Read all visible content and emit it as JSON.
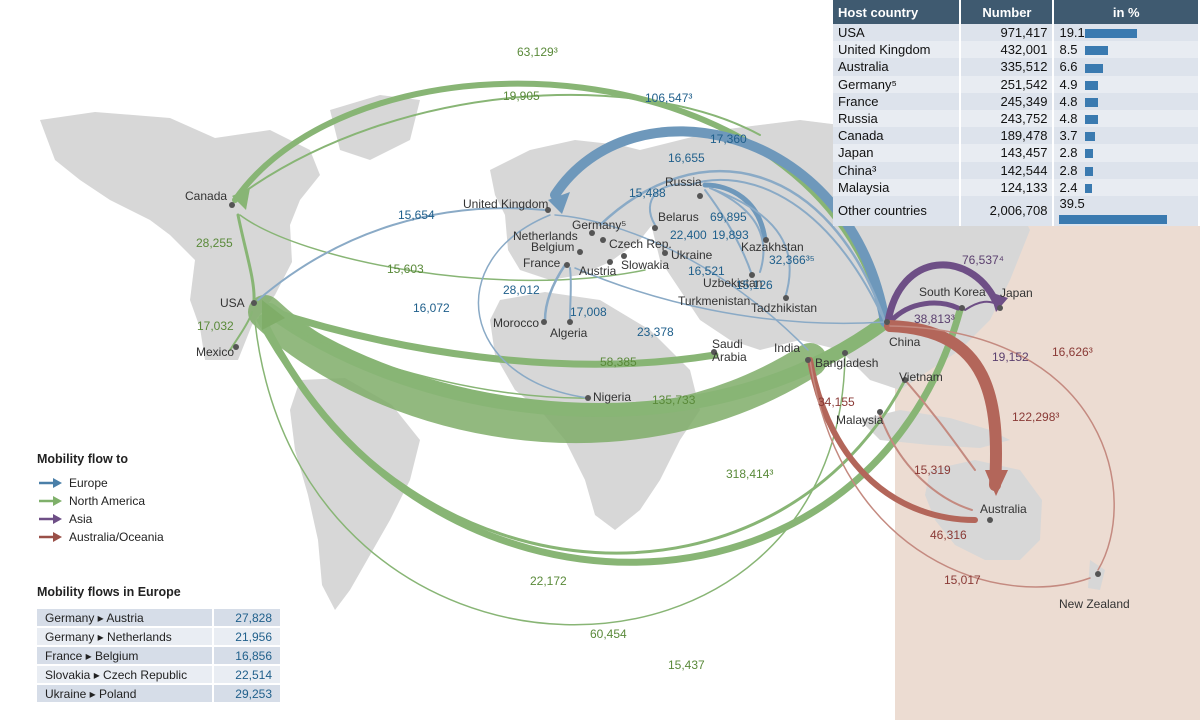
{
  "host_table": {
    "headers": [
      "Host country",
      "Number",
      "in %"
    ],
    "rows": [
      {
        "country": "USA",
        "number": "971,417",
        "pct": "19.1",
        "share": 19.1
      },
      {
        "country": "United Kingdom",
        "number": "432,001",
        "pct": "8.5",
        "share": 8.5
      },
      {
        "country": "Australia",
        "number": "335,512",
        "pct": "6.6",
        "share": 6.6
      },
      {
        "country": "Germany⁵",
        "number": "251,542",
        "pct": "4.9",
        "share": 4.9
      },
      {
        "country": "France",
        "number": "245,349",
        "pct": "4.8",
        "share": 4.8
      },
      {
        "country": "Russia",
        "number": "243,752",
        "pct": "4.8",
        "share": 4.8
      },
      {
        "country": "Canada",
        "number": "189,478",
        "pct": "3.7",
        "share": 3.7
      },
      {
        "country": "Japan",
        "number": "143,457",
        "pct": "2.8",
        "share": 2.8
      },
      {
        "country": "China³",
        "number": "142,544",
        "pct": "2.8",
        "share": 2.8
      },
      {
        "country": "Malaysia",
        "number": "124,133",
        "pct": "2.4",
        "share": 2.4
      },
      {
        "country": "Other countries",
        "number": "2,006,708",
        "pct": "39.5",
        "share": 39.5
      }
    ]
  },
  "legend": {
    "title": "Mobility flow to",
    "items": [
      {
        "label": "Europe",
        "color": "#4a7fa8"
      },
      {
        "label": "North America",
        "color": "#7fb06a"
      },
      {
        "label": "Asia",
        "color": "#6e4f86"
      },
      {
        "label": "Australia/Oceania",
        "color": "#9a5048"
      }
    ]
  },
  "europe_flows": {
    "title": "Mobility flows in Europe",
    "rows": [
      {
        "route": "Germany ▸ Austria",
        "value": "27,828"
      },
      {
        "route": "Germany ▸ Netherlands",
        "value": "21,956"
      },
      {
        "route": "France ▸ Belgium",
        "value": "16,856"
      },
      {
        "route": "Slovakia ▸ Czech Republic",
        "value": "22,514"
      },
      {
        "route": "Ukraine ▸ Poland",
        "value": "29,253"
      }
    ]
  },
  "countries": {
    "canada": "Canada",
    "usa": "USA",
    "mexico": "Mexico",
    "uk": "United Kingdom",
    "netherlands": "Netherlands",
    "belgium": "Belgium",
    "france": "France",
    "germany": "Germany⁵",
    "czech": "Czech Rep.",
    "austria": "Austria",
    "slovakia": "Slowakia",
    "ukraine": "Ukraine",
    "belarus": "Belarus",
    "russia": "Russia",
    "kazakhstan": "Kazakhstan",
    "uzbekistan": "Uzbekistan",
    "turkmenistan": "Turkmenistan",
    "tajikistan": "Tadzhikistan",
    "morocco": "Morocco",
    "algeria": "Algeria",
    "nigeria": "Nigeria",
    "saudi1": "Saudi",
    "saudi2": "Arabia",
    "india": "India",
    "bangladesh": "Bangladesh",
    "china": "China",
    "south_korea": "South Korea",
    "japan": "Japan",
    "vietnam": "Vietnam",
    "malaysia": "Malaysia",
    "australia": "Australia",
    "new_zealand": "New Zealand"
  },
  "flow_values": {
    "china_canada": "63,129³",
    "top_canada": "19,905",
    "china_uk": "106,547³",
    "f17360": "17,360",
    "f16655": "16,655",
    "f15488": "15,488",
    "usa_uk": "15,654",
    "canada_f": "28,255",
    "f15603": "15,603",
    "f16072": "16,072",
    "f28012": "28,012",
    "f17008": "17,008",
    "f22400": "22,400",
    "f19893": "19,893",
    "f69895": "69,895",
    "f32366": "32,366³⁵",
    "f16521": "16,521",
    "f15126": "15,126",
    "f23378": "23,378",
    "f17032": "17,032",
    "f58385": "58,385",
    "f135733": "135,733",
    "f318414": "318,414³",
    "f76537": "76,537⁴",
    "f38813": "38,813³",
    "f19152": "19,152",
    "f16626": "16,626³",
    "f122298": "122,298³",
    "f34155": "34,155",
    "f15319": "15,319",
    "f46316": "46,316",
    "f15017": "15,017",
    "f22172": "22,172",
    "f60454": "60,454",
    "f15437": "15,437"
  }
}
